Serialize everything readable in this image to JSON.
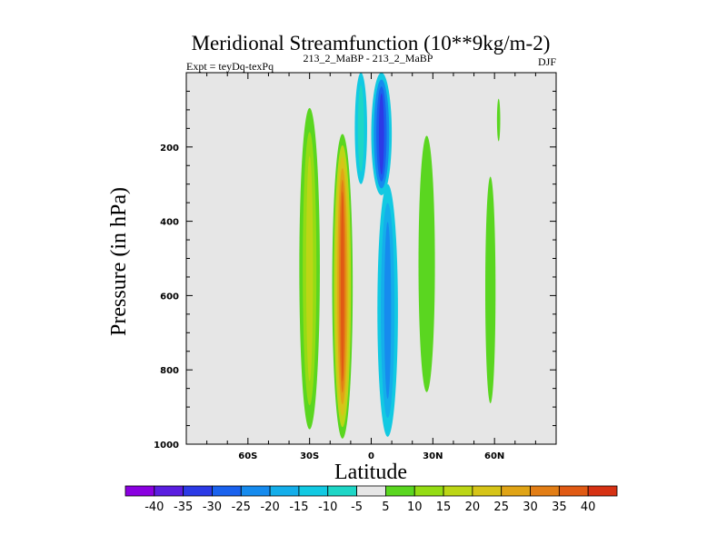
{
  "chart_data": {
    "type": "heatmap",
    "title": "Meridional Streamfunction (10**9kg/m-2)",
    "left_label": "Expt = teyDq-texPq",
    "center_label": "213_2_MaBP - 213_2_MaBP",
    "right_label": "DJF",
    "xlabel": "Latitude",
    "ylabel": "Pressure (in hPa)",
    "xlim": [
      -90,
      90
    ],
    "ylim": [
      1000,
      0
    ],
    "x_ticks": [
      {
        "value": -60,
        "label": "60S"
      },
      {
        "value": -30,
        "label": "30S"
      },
      {
        "value": 0,
        "label": "0"
      },
      {
        "value": 30,
        "label": "30N"
      },
      {
        "value": 60,
        "label": "60N"
      }
    ],
    "y_ticks": [
      {
        "value": 200,
        "label": "200"
      },
      {
        "value": 400,
        "label": "400"
      },
      {
        "value": 600,
        "label": "600"
      },
      {
        "value": 800,
        "label": "800"
      },
      {
        "value": 1000,
        "label": "1000"
      }
    ],
    "background_color": "#e6e6e6",
    "colorbar": {
      "labels": [
        "-40",
        "-35",
        "-30",
        "-25",
        "-20",
        "-15",
        "-10",
        "-5",
        "5",
        "10",
        "15",
        "20",
        "25",
        "30",
        "35",
        "40"
      ],
      "colors": [
        "#8a00e0",
        "#5a1ee0",
        "#2c3ae6",
        "#1a62ee",
        "#168bee",
        "#14aeea",
        "#12c9e2",
        "#1ed6c6",
        "#e6e6e6",
        "#5ad620",
        "#94dc14",
        "#bcd616",
        "#d6c418",
        "#e0a416",
        "#e27e16",
        "#e05a14",
        "#d63214"
      ]
    },
    "cells": [
      {
        "lat": -30,
        "lat_w": 5,
        "p_top": 95,
        "p_bot": 960,
        "colors": [
          "#5ad620",
          "#94dc14",
          "#bcd616"
        ]
      },
      {
        "lat": -14,
        "lat_w": 5,
        "p_top": 165,
        "p_bot": 985,
        "colors": [
          "#5ad620",
          "#bcd616",
          "#d6c418",
          "#e0a416",
          "#e27e16",
          "#e05a14"
        ]
      },
      {
        "lat": -5,
        "lat_w": 3,
        "p_top": 0,
        "p_bot": 300,
        "colors": [
          "#12c9e2",
          "#1ed6c6"
        ]
      },
      {
        "lat": 5,
        "lat_w": 5,
        "p_top": 0,
        "p_bot": 330,
        "colors": [
          "#12c9e2",
          "#168bee",
          "#1a62ee",
          "#2c3ae6"
        ]
      },
      {
        "lat": 8,
        "lat_w": 5,
        "p_top": 300,
        "p_bot": 980,
        "colors": [
          "#12c9e2",
          "#14aeea",
          "#168bee"
        ]
      },
      {
        "lat": 27,
        "lat_w": 4,
        "p_top": 170,
        "p_bot": 860,
        "colors": [
          "#5ad620"
        ]
      },
      {
        "lat": 58,
        "lat_w": 2.5,
        "p_top": 280,
        "p_bot": 890,
        "colors": [
          "#5ad620"
        ]
      },
      {
        "lat": 62,
        "lat_w": 0.8,
        "p_top": 70,
        "p_bot": 185,
        "colors": [
          "#5ad620"
        ]
      }
    ]
  }
}
